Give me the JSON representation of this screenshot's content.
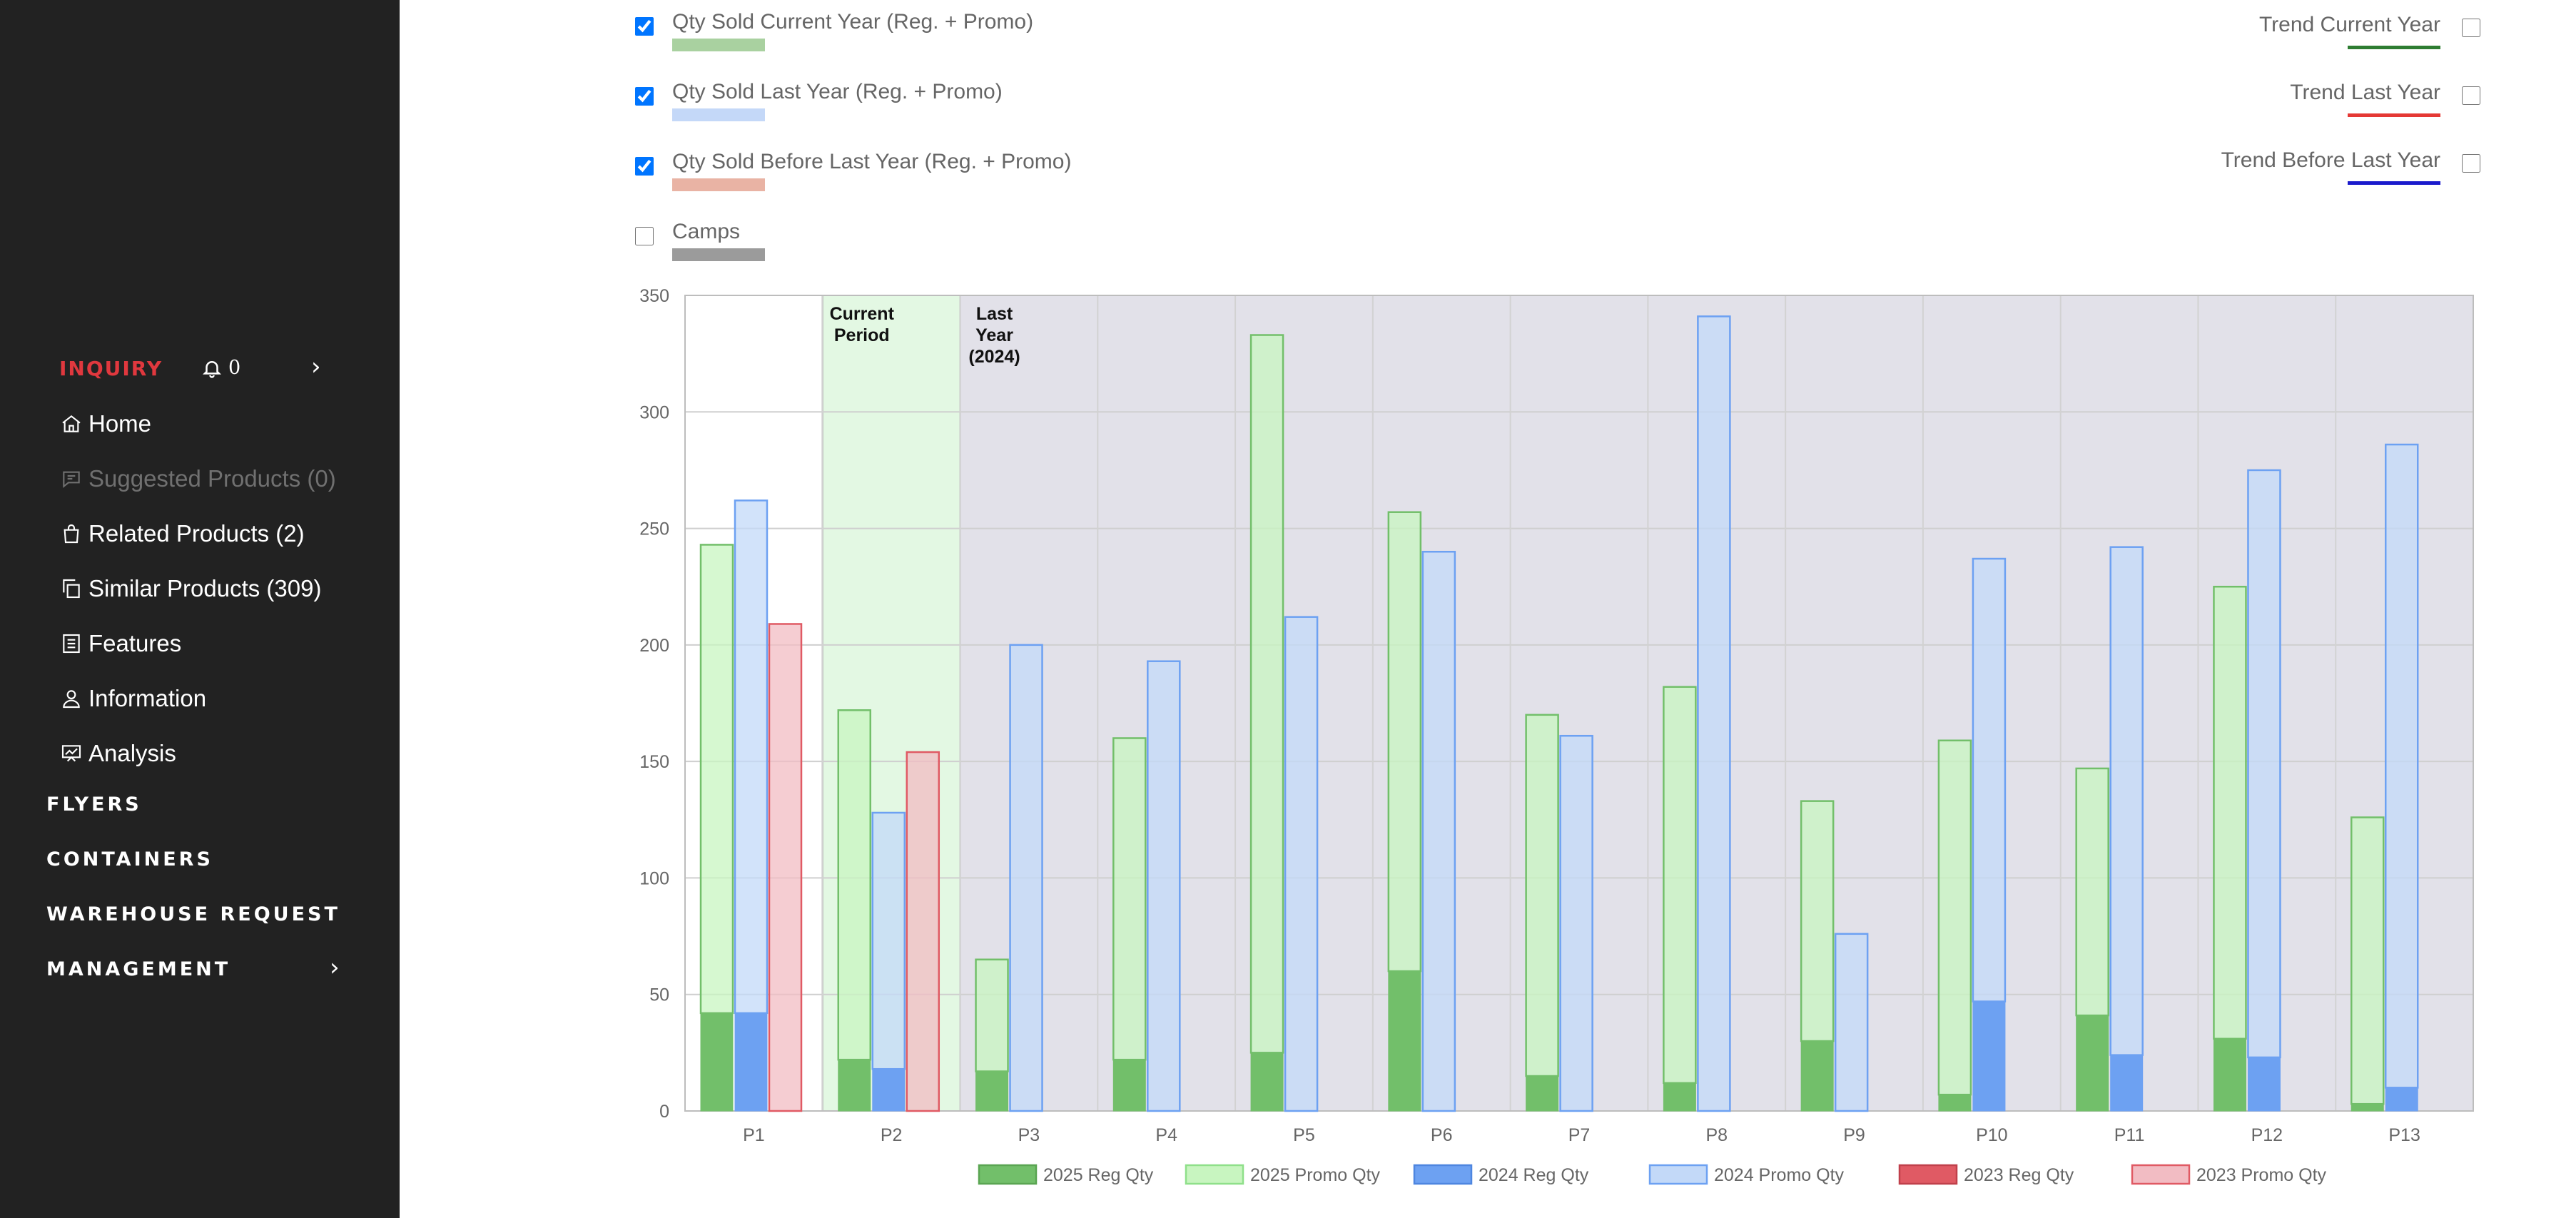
{
  "sidebar": {
    "inquiry_label": "INQUIRY",
    "notification_count": "0",
    "items": [
      {
        "label": "Home",
        "icon": "home-icon"
      },
      {
        "label": "Suggested Products (0)",
        "icon": "chat-icon",
        "disabled": true
      },
      {
        "label": "Related Products (2)",
        "icon": "bag-icon"
      },
      {
        "label": "Similar Products (309)",
        "icon": "copy-icon"
      },
      {
        "label": "Features",
        "icon": "list-icon"
      },
      {
        "label": "Information",
        "icon": "user-icon"
      },
      {
        "label": "Analysis",
        "icon": "chart-icon"
      }
    ],
    "sections": [
      "FLYERS",
      "CONTAINERS",
      "WAREHOUSE REQUEST",
      "MANAGEMENT"
    ]
  },
  "legend_toggles": [
    {
      "label": "Qty Sold Current Year (Reg. + Promo)",
      "checked": true,
      "color": "#a9d1a0"
    },
    {
      "label": "Qty Sold Last Year (Reg. + Promo)",
      "checked": true,
      "color": "#c4d8f8"
    },
    {
      "label": "Qty Sold Before Last Year (Reg. + Promo)",
      "checked": true,
      "color": "#e9b3a4"
    },
    {
      "label": "Camps",
      "checked": false,
      "color": "#9b9b9b"
    }
  ],
  "trend_toggles": [
    {
      "label": "Trend Current Year",
      "checked": false,
      "color": "#2e7d32"
    },
    {
      "label": "Trend Last Year",
      "checked": false,
      "color": "#e53935"
    },
    {
      "label": "Trend Before Last Year",
      "checked": false,
      "color": "#1a1acc"
    }
  ],
  "chart_data": {
    "type": "bar",
    "categories": [
      "P1",
      "P2",
      "P3",
      "P4",
      "P5",
      "P6",
      "P7",
      "P8",
      "P9",
      "P10",
      "P11",
      "P12",
      "P13"
    ],
    "ylim": [
      0,
      350
    ],
    "y_ticks": [
      0,
      50,
      100,
      150,
      200,
      250,
      300,
      350
    ],
    "grid": true,
    "legend_placement": "bottom",
    "stacked_groups": [
      {
        "year": "2025",
        "reg_name": "2025 Reg Qty",
        "promo_name": "2025 Promo Qty",
        "reg_color": "#72bf6a",
        "promo_color": "#c8f5c0",
        "totals": [
          243,
          172,
          65,
          160,
          333,
          257,
          170,
          182,
          133,
          159,
          147,
          225,
          126
        ],
        "reg": [
          42,
          22,
          17,
          22,
          25,
          60,
          15,
          12,
          30,
          7,
          41,
          31,
          3
        ]
      },
      {
        "year": "2024",
        "reg_name": "2024 Reg Qty",
        "promo_name": "2024 Promo Qty",
        "reg_color": "#6da1f2",
        "promo_color": "#c3d9f8",
        "totals": [
          262,
          128,
          200,
          193,
          212,
          240,
          161,
          341,
          76,
          237,
          242,
          275,
          286
        ],
        "reg": [
          42,
          18,
          0,
          0,
          0,
          0,
          0,
          0,
          0,
          47,
          24,
          23,
          10
        ]
      },
      {
        "year": "2023",
        "reg_name": "2023 Reg Qty",
        "promo_name": "2023 Promo Qty",
        "reg_color": "#e05a64",
        "promo_color": "#f2bcc3",
        "totals": [
          209,
          154,
          null,
          null,
          null,
          null,
          null,
          null,
          null,
          null,
          null,
          null,
          null
        ],
        "reg": [
          0,
          0,
          null,
          null,
          null,
          null,
          null,
          null,
          null,
          null,
          null,
          null,
          null
        ]
      }
    ],
    "period_bands": [
      {
        "label": "Current Period",
        "from": "P2",
        "to": "P2",
        "color": "#e3f8e3"
      },
      {
        "label": "Last Year (2024)",
        "from": "P3",
        "to": "P13",
        "color": "#e2e1e9"
      }
    ],
    "legend": [
      {
        "label": "2025 Reg Qty",
        "color": "#72bf6a",
        "border": "#5aa552"
      },
      {
        "label": "2025 Promo Qty",
        "color": "#c8f5c0",
        "border": "#8fe08a"
      },
      {
        "label": "2024 Reg Qty",
        "color": "#6da1f2",
        "border": "#4e86e0"
      },
      {
        "label": "2024 Promo Qty",
        "color": "#c3d9f8",
        "border": "#6da1f2"
      },
      {
        "label": "2023 Reg Qty",
        "color": "#e05a64",
        "border": "#c0404b"
      },
      {
        "label": "2023 Promo Qty",
        "color": "#f2bcc3",
        "border": "#e05a64"
      }
    ]
  }
}
